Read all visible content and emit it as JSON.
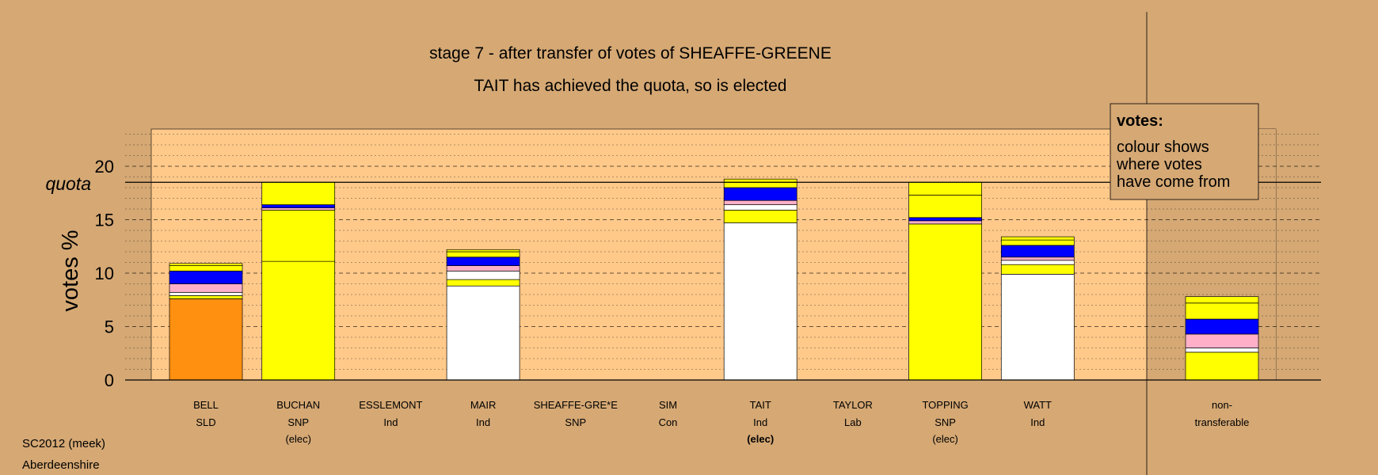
{
  "chart_data": {
    "type": "bar",
    "title": "stage 7 - after transfer of votes of SHEAFFE-GREENE",
    "subtitle": "TAIT has achieved the quota, so is elected",
    "ylabel": "votes %",
    "ylim": [
      0,
      23.5
    ],
    "yticks": [
      0,
      5,
      10,
      15,
      20
    ],
    "quota": 18.5,
    "quota_label": "quota",
    "grid": true,
    "candidates": [
      {
        "name": "BELL",
        "party": "SLD",
        "status": "",
        "segments": [
          {
            "value": 7.6,
            "color": "#ff9010"
          },
          {
            "value": 0.3,
            "color": "#ffff00"
          },
          {
            "value": 0.3,
            "color": "#ffffff"
          },
          {
            "value": 0.8,
            "color": "#ffb0c8"
          },
          {
            "value": 1.2,
            "color": "#0000ff"
          },
          {
            "value": 0.5,
            "color": "#ffff00"
          },
          {
            "value": 0.2,
            "color": "#ffff00"
          }
        ]
      },
      {
        "name": "BUCHAN",
        "party": "SNP",
        "status": "(elec)",
        "segments": [
          {
            "value": 11.1,
            "color": "#ffff00"
          },
          {
            "value": 4.8,
            "color": "#ffff00"
          },
          {
            "value": 0.2,
            "color": "#ffb0c8"
          },
          {
            "value": 0.3,
            "color": "#0000ff"
          },
          {
            "value": 2.1,
            "color": "#ffff00"
          }
        ]
      },
      {
        "name": "ESSLEMONT",
        "party": "Ind",
        "status": "",
        "segments": []
      },
      {
        "name": "MAIR",
        "party": "Ind",
        "status": "",
        "segments": [
          {
            "value": 8.8,
            "color": "#ffffff"
          },
          {
            "value": 0.6,
            "color": "#ffff00"
          },
          {
            "value": 0.8,
            "color": "#ffffff"
          },
          {
            "value": 0.5,
            "color": "#ffb0c8"
          },
          {
            "value": 0.8,
            "color": "#0000ff"
          },
          {
            "value": 0.5,
            "color": "#ffff00"
          },
          {
            "value": 0.2,
            "color": "#ffff00"
          }
        ]
      },
      {
        "name": "SHEAFFE-GRE*E",
        "party": "SNP",
        "status": "",
        "segments": []
      },
      {
        "name": "SIM",
        "party": "Con",
        "status": "",
        "segments": []
      },
      {
        "name": "TAIT",
        "party": "Ind",
        "status": "(elec)",
        "status_bold": true,
        "segments": [
          {
            "value": 14.7,
            "color": "#ffffff"
          },
          {
            "value": 1.2,
            "color": "#ffff00"
          },
          {
            "value": 0.5,
            "color": "#ffffff"
          },
          {
            "value": 0.4,
            "color": "#ffb0c8"
          },
          {
            "value": 1.2,
            "color": "#0000ff"
          },
          {
            "value": 0.5,
            "color": "#ffff00"
          },
          {
            "value": 0.3,
            "color": "#ffff00"
          }
        ]
      },
      {
        "name": "TAYLOR",
        "party": "Lab",
        "status": "",
        "segments": []
      },
      {
        "name": "TOPPING",
        "party": "SNP",
        "status": "(elec)",
        "segments": [
          {
            "value": 14.6,
            "color": "#ffff00"
          },
          {
            "value": 0.3,
            "color": "#ffb0c8"
          },
          {
            "value": 0.3,
            "color": "#0000ff"
          },
          {
            "value": 2.1,
            "color": "#ffff00"
          },
          {
            "value": 1.2,
            "color": "#ffff00"
          }
        ]
      },
      {
        "name": "WATT",
        "party": "Ind",
        "status": "",
        "segments": [
          {
            "value": 9.9,
            "color": "#ffffff"
          },
          {
            "value": 0.9,
            "color": "#ffff00"
          },
          {
            "value": 0.4,
            "color": "#ffffff"
          },
          {
            "value": 0.3,
            "color": "#ffb0c8"
          },
          {
            "value": 1.1,
            "color": "#0000ff"
          },
          {
            "value": 0.5,
            "color": "#ffff00"
          },
          {
            "value": 0.3,
            "color": "#ffff00"
          }
        ]
      }
    ],
    "nontransferable": {
      "label_line1": "non-",
      "label_line2": "transferable",
      "segments": [
        {
          "value": 2.6,
          "color": "#ffff00"
        },
        {
          "value": 0.4,
          "color": "#ffffff"
        },
        {
          "value": 1.3,
          "color": "#ffb0c8"
        },
        {
          "value": 1.4,
          "color": "#0000ff"
        },
        {
          "value": 1.5,
          "color": "#ffff00"
        },
        {
          "value": 0.6,
          "color": "#ffff00"
        }
      ]
    },
    "legend": {
      "title": "votes:",
      "lines": [
        "colour shows",
        "where votes",
        "have come from"
      ],
      "placement": "top-right"
    },
    "colors": {
      "background": "#d5a874",
      "plot_background": "#ffc98a",
      "nontransferable_background": "#d5a874"
    }
  },
  "footer": {
    "source": "SC2012 (meek)",
    "area": "Aberdeenshire"
  }
}
